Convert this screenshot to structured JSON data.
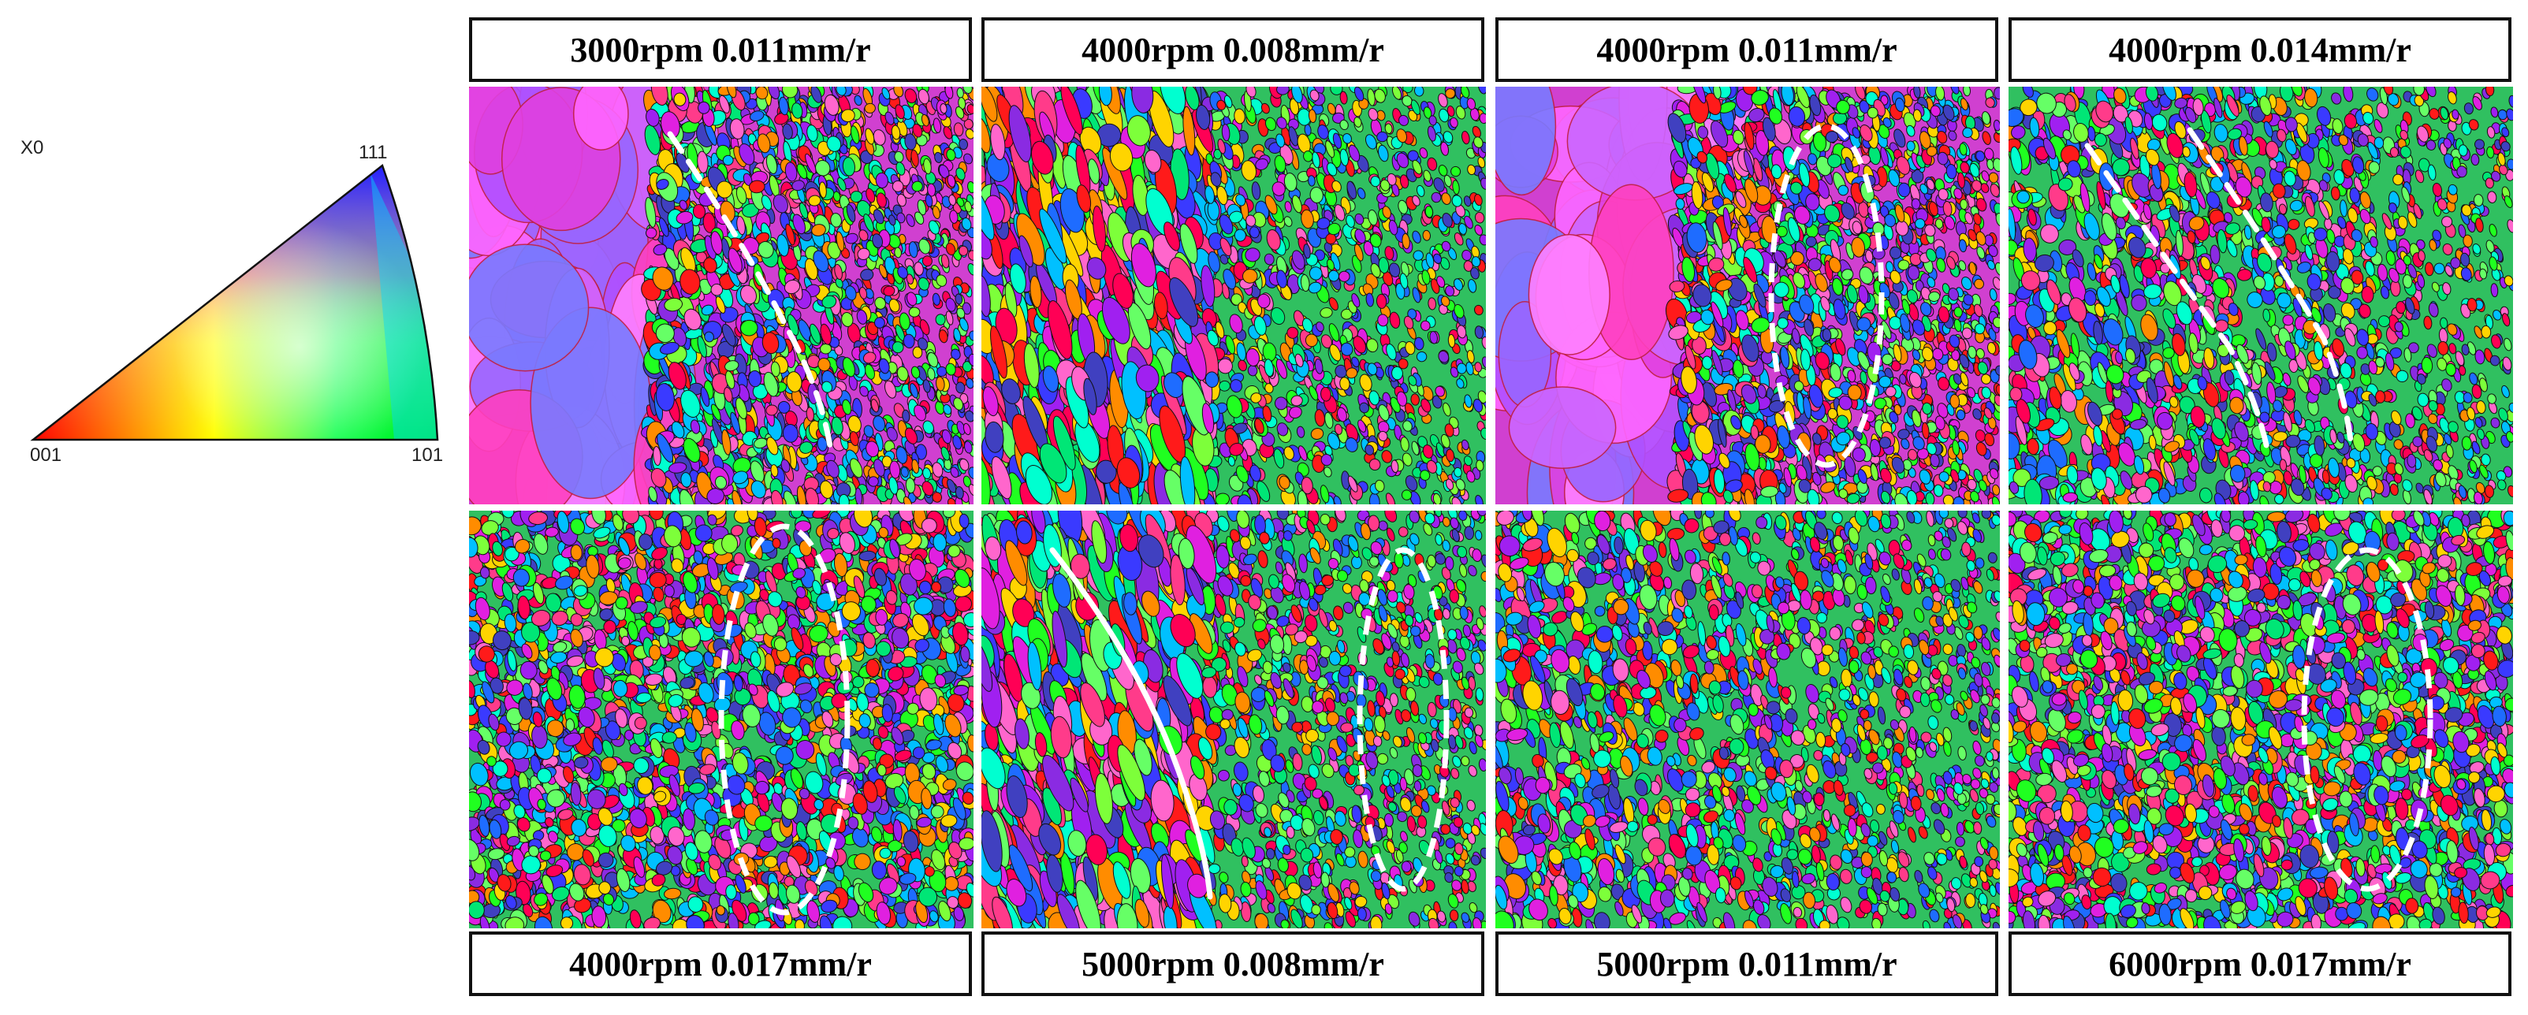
{
  "legend": {
    "axis_label": "X0",
    "vertex_top": "111",
    "vertex_left": "001",
    "vertex_right": "101"
  },
  "panels": [
    {
      "label": "3000rpm 0.011mm/r",
      "marking": "dashed-line",
      "texture": "large-grains-left"
    },
    {
      "label": "4000rpm 0.008mm/r",
      "marking": "none",
      "texture": "elongated-left"
    },
    {
      "label": "4000rpm 0.011mm/r",
      "marking": "dashed-ellipse",
      "texture": "large-grains-left"
    },
    {
      "label": "4000rpm 0.014mm/r",
      "marking": "dashed-lines-pair",
      "texture": "mixed"
    },
    {
      "label": "4000rpm 0.017mm/r",
      "marking": "dashed-ellipse",
      "texture": "fine-equiaxed"
    },
    {
      "label": "5000rpm 0.008mm/r",
      "marking": "solid-line-and-dashed-ellipse",
      "texture": "elongated-left"
    },
    {
      "label": "5000rpm 0.011mm/r",
      "marking": "none",
      "texture": "mixed"
    },
    {
      "label": "6000rpm 0.017mm/r",
      "marking": "dashed-ellipse",
      "texture": "fine-equiaxed"
    }
  ]
}
